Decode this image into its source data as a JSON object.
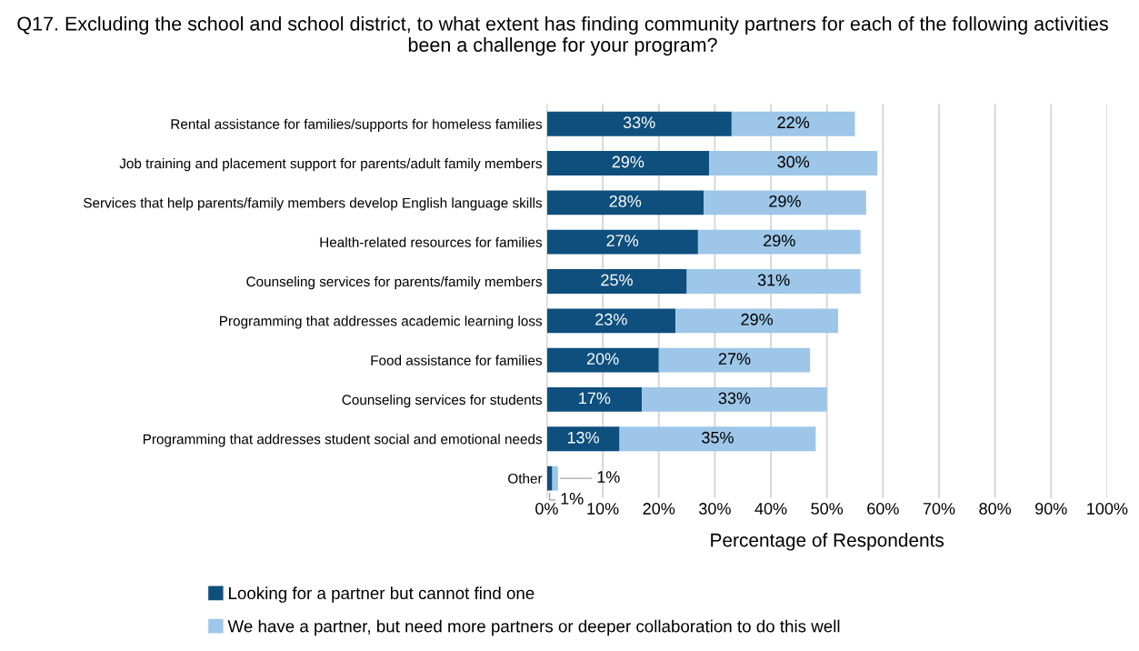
{
  "chart_data": {
    "type": "bar",
    "orientation": "horizontal",
    "stacked": true,
    "title": "Q17. Excluding the school and school district, to what extent has finding community partners for each of the following activities been a challenge for your program?",
    "xlabel": "Percentage of Respondents",
    "categories": [
      "Rental assistance for families/supports for homeless families",
      "Job training and placement support for parents/adult family members",
      "Services that help parents/family members develop English language skills",
      "Health-related resources for families",
      "Counseling services for parents/family members",
      "Programming that addresses academic learning loss",
      "Food assistance for families",
      "Counseling services for students",
      "Programming that addresses student social and emotional needs",
      "Other"
    ],
    "series": [
      {
        "name": "Looking for a partner but cannot find one",
        "color": "#0e4f7e",
        "values": [
          33,
          29,
          28,
          27,
          25,
          23,
          20,
          17,
          13,
          1
        ],
        "value_labels": [
          "33%",
          "29%",
          "28%",
          "27%",
          "25%",
          "23%",
          "20%",
          "17%",
          "13%",
          "1%"
        ]
      },
      {
        "name": "We have a partner, but need more partners or deeper collaboration to do this well",
        "color": "#9dc6e8",
        "values": [
          22,
          30,
          29,
          29,
          31,
          29,
          27,
          33,
          35,
          1
        ],
        "value_labels": [
          "22%",
          "30%",
          "29%",
          "29%",
          "31%",
          "29%",
          "27%",
          "33%",
          "35%",
          "1%"
        ]
      }
    ],
    "xlim": [
      0,
      100
    ],
    "xticks": [
      {
        "value": 0,
        "label": "0%"
      },
      {
        "value": 10,
        "label": "10%"
      },
      {
        "value": 20,
        "label": "20%"
      },
      {
        "value": 30,
        "label": "30%"
      },
      {
        "value": 40,
        "label": "40%"
      },
      {
        "value": 50,
        "label": "50%"
      },
      {
        "value": 60,
        "label": "60%"
      },
      {
        "value": 70,
        "label": "70%"
      },
      {
        "value": 80,
        "label": "80%"
      },
      {
        "value": 90,
        "label": "90%"
      },
      {
        "value": 100,
        "label": "100%"
      }
    ],
    "grid": "x",
    "legend": "bottom"
  }
}
